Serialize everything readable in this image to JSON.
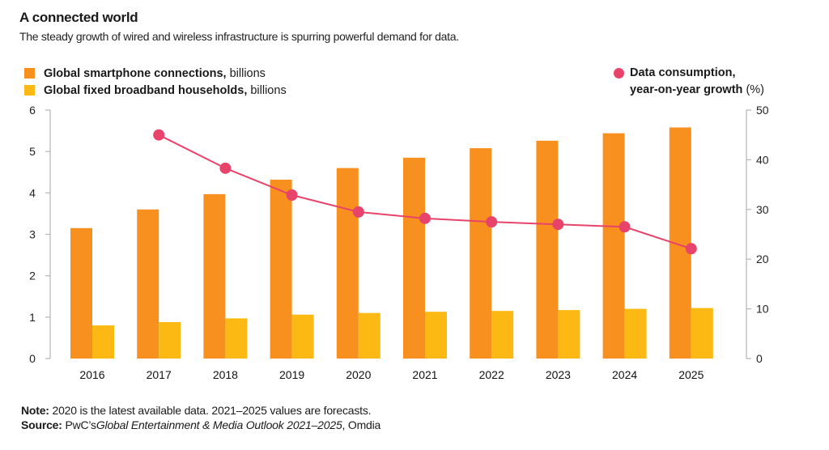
{
  "header": {
    "title": "A connected world",
    "subtitle": "The steady growth of wired and wireless infrastructure is spurring powerful demand for data."
  },
  "legend": {
    "left": [
      {
        "bold": "Global smartphone connections,",
        "rest": "billions",
        "color": "#F7901E"
      },
      {
        "bold": "Global fixed broadband households,",
        "rest": "billions",
        "color": "#FDB913"
      }
    ],
    "right": {
      "bold_line1": "Data consumption,",
      "bold_line2": "year-on-year growth",
      "rest": "(%)",
      "color": "#E8436A"
    }
  },
  "footer": {
    "note_label": "Note:",
    "note_text": "2020 is the latest available data. 2021–2025 values are forecasts.",
    "source_label": "Source:",
    "source_pre": "PwC’s",
    "source_italic": "Global Entertainment & Media Outlook 2021–2025",
    "source_post": ", Omdia"
  },
  "chart_data": {
    "type": "bar",
    "title": "A connected world",
    "subtitle": "The steady growth of wired and wireless infrastructure is spurring powerful demand for data.",
    "categories": [
      "2016",
      "2017",
      "2018",
      "2019",
      "2020",
      "2021",
      "2022",
      "2023",
      "2024",
      "2025"
    ],
    "series": [
      {
        "name": "Global smartphone connections, billions",
        "type": "bar",
        "axis": "left",
        "color": "#F7901E",
        "values": [
          3.15,
          3.6,
          3.97,
          4.32,
          4.6,
          4.85,
          5.08,
          5.26,
          5.44,
          5.58
        ]
      },
      {
        "name": "Global fixed broadband households, billions",
        "type": "bar",
        "axis": "left",
        "color": "#FDB913",
        "values": [
          0.8,
          0.88,
          0.97,
          1.06,
          1.1,
          1.13,
          1.15,
          1.17,
          1.2,
          1.22
        ]
      },
      {
        "name": "Data consumption, year-on-year growth (%)",
        "type": "line",
        "axis": "right",
        "color": "#E8436A",
        "values": [
          null,
          45,
          38.3,
          32.9,
          29.5,
          28.2,
          27.5,
          27.0,
          26.5,
          22.1
        ]
      }
    ],
    "left_axis": {
      "label": "billions",
      "ylim": [
        0,
        6
      ],
      "ticks": [
        0,
        1,
        2,
        3,
        4,
        5,
        6
      ]
    },
    "right_axis": {
      "label": "%",
      "ylim": [
        0,
        50
      ],
      "ticks": [
        0,
        10,
        20,
        30,
        40,
        50
      ]
    },
    "grid": false,
    "legend_position": "top"
  }
}
